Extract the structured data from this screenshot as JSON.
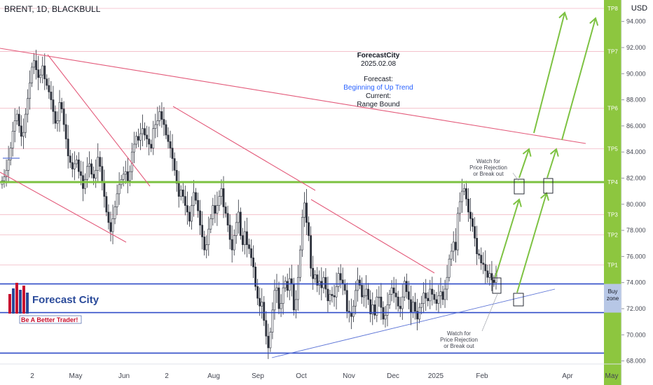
{
  "header": {
    "symbol": "BRENT",
    "timeframe": "1D",
    "broker": "BLACKBULL",
    "title": "BRENT, 1D, BLACKBULL"
  },
  "currency": "USD",
  "forecast_box": {
    "brand": "ForecastCity",
    "date": "2025.02.08",
    "forecast_label": "Forecast:",
    "forecast_value": "Beginning of Up Trend",
    "current_label": "Current:",
    "current_value": "Range Bound"
  },
  "notes": {
    "upper": [
      "Watch for",
      "Price Rejection",
      "or Break out"
    ],
    "lower": [
      "Watch for",
      "Price Rejection",
      "or Break out"
    ]
  },
  "logo": {
    "name": "Forecast City",
    "tagline": "Be A Better Trader!"
  },
  "buy_zone": {
    "line1": "Buy",
    "line2": "zone",
    "low": 71.7,
    "high": 73.9
  },
  "colors": {
    "tp_band": "#8dc63f",
    "accent_green": "#7dc242",
    "trend_red": "#e35a7a",
    "support_blue": "#2f4bc8",
    "candle_dark": "#2a2e39"
  },
  "chart_data": {
    "type": "candlestick",
    "ylim": [
      67.7,
      95.5
    ],
    "y_ticks": [
      68,
      70,
      72,
      74,
      76,
      78,
      80,
      82,
      84,
      86,
      88,
      90,
      92,
      94
    ],
    "y_tick_labels": [
      "68.000",
      "70.000",
      "72.000",
      "74.000",
      "76.000",
      "78.000",
      "80.000",
      "82.000",
      "84.000",
      "86.000",
      "88.000",
      "90.000",
      "92.000",
      "94.000"
    ],
    "x_tick_labels": [
      "2",
      "May",
      "Jun",
      "2",
      "Aug",
      "Sep",
      "Oct",
      "Nov",
      "Dec",
      "2025",
      "Feb",
      "Apr",
      "May"
    ],
    "take_profit_levels": [
      {
        "label": "TP1",
        "price": 75.35
      },
      {
        "label": "TP2",
        "price": 77.65
      },
      {
        "label": "TP3",
        "price": 79.2
      },
      {
        "label": "TP4",
        "price": 81.7
      },
      {
        "label": "TP5",
        "price": 84.25
      },
      {
        "label": "TP6",
        "price": 87.35
      },
      {
        "label": "TP7",
        "price": 91.7
      },
      {
        "label": "TP8",
        "price": 95.0
      }
    ],
    "horizontal_lines": [
      {
        "name": "TP4",
        "price": 81.7,
        "style": "green-thick"
      },
      {
        "name": "buy-zone-top",
        "price": 73.9,
        "style": "blue"
      },
      {
        "name": "buy-zone-bottom",
        "price": 71.7,
        "style": "blue"
      },
      {
        "name": "bottom-support",
        "price": 68.6,
        "style": "blue"
      }
    ],
    "closes": [
      81.8,
      82.1,
      82.6,
      83.4,
      84.3,
      85.6,
      86.4,
      86.9,
      86.0,
      85.2,
      85.5,
      86.9,
      88.1,
      89.3,
      90.5,
      91.0,
      90.3,
      89.7,
      89.9,
      90.6,
      89.6,
      89.1,
      88.6,
      88.0,
      87.1,
      86.2,
      86.4,
      87.8,
      87.3,
      86.1,
      85.0,
      83.7,
      83.2,
      82.7,
      83.1,
      83.4,
      82.5,
      82.2,
      81.2,
      81.9,
      82.9,
      83.1,
      82.3,
      82.0,
      82.6,
      83.6,
      82.9,
      81.7,
      80.6,
      79.4,
      78.6,
      77.9,
      78.9,
      79.8,
      80.8,
      81.5,
      81.9,
      82.3,
      82.5,
      81.8,
      82.5,
      84.0,
      84.6,
      85.2,
      84.9,
      85.4,
      85.8,
      85.3,
      85.0,
      84.6,
      84.3,
      85.8,
      86.1,
      86.4,
      87.1,
      86.5,
      86.1,
      85.3,
      84.8,
      84.3,
      83.5,
      82.6,
      81.6,
      80.6,
      81.1,
      80.6,
      79.9,
      79.4,
      78.7,
      79.9,
      80.9,
      80.3,
      79.5,
      78.4,
      77.5,
      76.5,
      76.9,
      78.1,
      78.9,
      79.9,
      79.3,
      79.9,
      80.6,
      81.2,
      79.8,
      79.3,
      78.4,
      77.3,
      76.5,
      77.6,
      78.6,
      79.4,
      77.6,
      76.9,
      77.9,
      76.9,
      76.6,
      75.9,
      75.2,
      73.7,
      72.8,
      72.2,
      72.5,
      71.1,
      69.9,
      69.0,
      70.2,
      71.9,
      73.4,
      73.6,
      72.0,
      72.4,
      73.6,
      74.1,
      73.4,
      74.3,
      73.9,
      71.9,
      72.7,
      74.4,
      76.5,
      79.0,
      80.1,
      78.6,
      77.6,
      75.1,
      74.3,
      74.6,
      73.8,
      74.1,
      73.6,
      74.4,
      73.5,
      72.6,
      73.1,
      73.0,
      72.9,
      73.7,
      74.7,
      74.2,
      73.9,
      73.4,
      71.8,
      71.7,
      71.4,
      72.2,
      73.4,
      74.2,
      73.8,
      72.9,
      73.0,
      73.5,
      72.7,
      71.6,
      72.3,
      71.5,
      72.9,
      72.9,
      72.1,
      71.2,
      71.5,
      72.3,
      73.1,
      73.6,
      73.2,
      72.9,
      72.2,
      72.0,
      72.9,
      74.1,
      73.3,
      72.7,
      71.7,
      72.5,
      71.8,
      71.2,
      72.1,
      72.4,
      73.2,
      72.8,
      72.6,
      73.5,
      73.1,
      72.7,
      72.4,
      73.0,
      73.3,
      72.7,
      73.5,
      74.4,
      75.8,
      76.4,
      77.1,
      76.5,
      79.3,
      80.2,
      81.0,
      81.2,
      80.4,
      79.4,
      78.9,
      78.3,
      77.4,
      76.2,
      76.1,
      75.5,
      75.4,
      74.9,
      74.4,
      74.7,
      74.2,
      74.0,
      74.7
    ]
  }
}
